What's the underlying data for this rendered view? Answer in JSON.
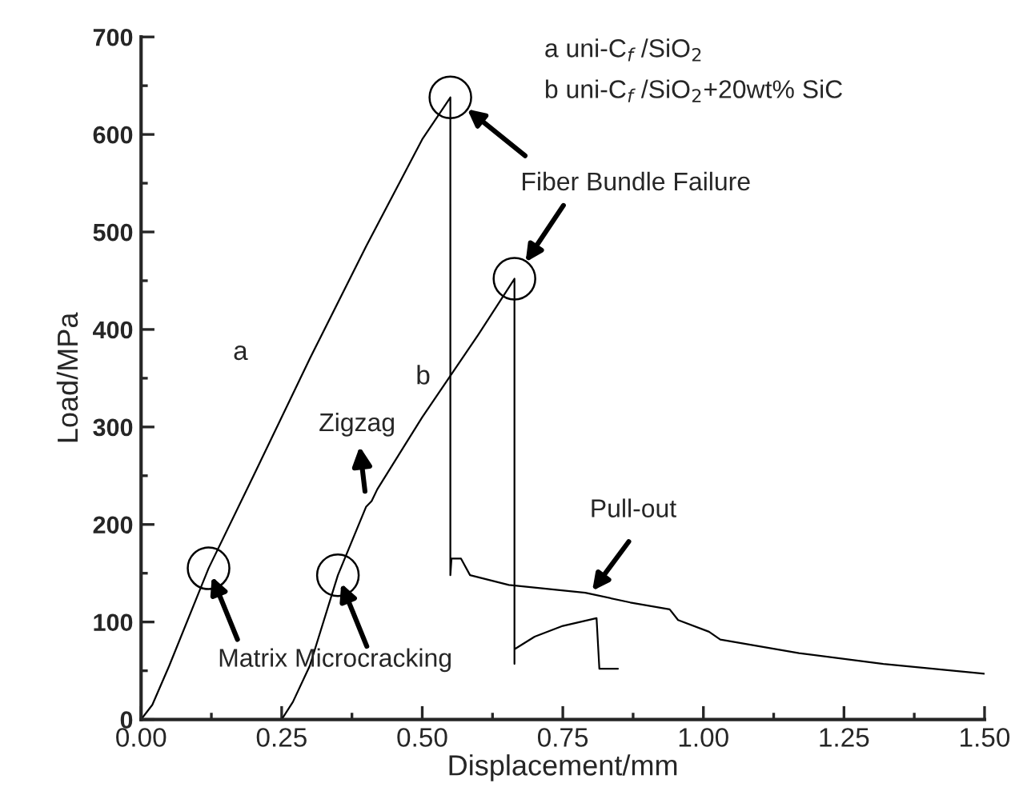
{
  "chart_data": {
    "type": "line",
    "xlabel": "Displacement/mm",
    "ylabel": "Load/MPa",
    "xlim": [
      0,
      1.5
    ],
    "ylim": [
      0,
      700
    ],
    "xticks": [
      {
        "value": 0,
        "label": "0.00"
      },
      {
        "value": 0.25,
        "label": "0.25"
      },
      {
        "value": 0.5,
        "label": "0.50"
      },
      {
        "value": 0.75,
        "label": "0.75"
      },
      {
        "value": 1.0,
        "label": "1.00"
      },
      {
        "value": 1.25,
        "label": "1.25"
      },
      {
        "value": 1.5,
        "label": "1.50"
      }
    ],
    "yticks": [
      0,
      100,
      200,
      300,
      400,
      500,
      600,
      700
    ],
    "grid": false,
    "legend": false,
    "marker": "none",
    "line_style": "solid",
    "series": [
      {
        "name": "a",
        "color": "#000000",
        "x": [
          0,
          0.02,
          0.05,
          0.12,
          0.2,
          0.3,
          0.4,
          0.5,
          0.55,
          0.55,
          0.552,
          0.569,
          0.585,
          0.654,
          0.79,
          0.87,
          0.94,
          0.955,
          1.01,
          1.03,
          1.17,
          1.32,
          1.5
        ],
        "values": [
          0,
          15,
          55,
          155,
          250,
          370,
          485,
          595,
          638,
          148,
          165,
          165,
          148,
          138,
          130,
          120,
          113,
          102,
          90,
          82,
          68,
          57,
          47
        ]
      },
      {
        "name": "b",
        "color": "#000000",
        "x": [
          0.25,
          0.27,
          0.3,
          0.35,
          0.4,
          0.41,
          0.42,
          0.5,
          0.6,
          0.664,
          0.664,
          0.664,
          0.7,
          0.75,
          0.81,
          0.815,
          0.848
        ],
        "values": [
          0,
          18,
          55,
          148,
          218,
          224,
          236,
          310,
          395,
          452,
          57,
          72,
          85,
          96,
          104,
          52,
          52
        ]
      }
    ],
    "annotations": [
      "a uni-C$_{f}$ /SiO$_{2}$",
      "b uni-C$_{f}$ /SiO$_{2}$+20wt% SiC",
      {
        "text": "Fiber Bundle Failure",
        "x": 0.58,
        "y": 626
      },
      {
        "text": "Pull-out",
        "x": 0.8,
        "y": 130
      },
      {
        "text": "Zigzag",
        "x": 0.4,
        "y": 225
      },
      "Matrix Microcracking"
    ]
  }
}
